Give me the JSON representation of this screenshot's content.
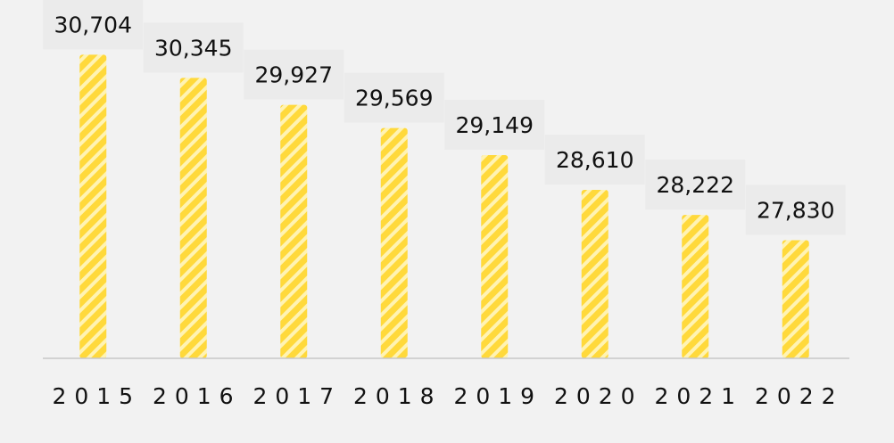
{
  "chart_data": {
    "type": "bar",
    "categories": [
      "2015",
      "2016",
      "2017",
      "2018",
      "2019",
      "2020",
      "2021",
      "2022"
    ],
    "values": [
      30704,
      30345,
      29927,
      29569,
      29149,
      28610,
      28222,
      27830
    ],
    "value_labels": [
      "30,704",
      "30,345",
      "29,927",
      "29,569",
      "29,149",
      "28,610",
      "28,222",
      "27,830"
    ],
    "title": "",
    "xlabel": "",
    "ylabel": "",
    "ylim": [
      26000,
      31000
    ],
    "grid": false,
    "legend": "none",
    "colors": {
      "bar": "#ffd93b",
      "stripe": "#fff3b3",
      "label_background": "#ebebeb",
      "axis": "#c8c8c8",
      "background": "#f2f2f2"
    }
  }
}
